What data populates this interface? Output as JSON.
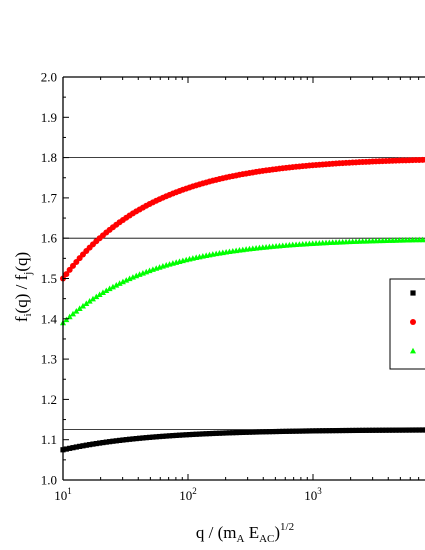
{
  "chart_data": {
    "type": "scatter",
    "xlabel": {
      "pre": "q / (m",
      "sub1": "A",
      "mid": " E",
      "sub2": "AC",
      "post": ")",
      "sup": "1/2"
    },
    "ylabel": {
      "f1": "f",
      "sub1": "i",
      "mid": "(q) / f",
      "sub2": "j",
      "post": "(q)"
    },
    "xscale": "log",
    "xlim": [
      10,
      8000
    ],
    "ylim": [
      1.0,
      2.0
    ],
    "yticks": [
      "1.0",
      "1.1",
      "1.2",
      "1.3",
      "1.4",
      "1.5",
      "1.6",
      "1.7",
      "1.8",
      "1.9",
      "2.0"
    ],
    "xticks": [
      {
        "base": "10",
        "exp": "1",
        "value": 10
      },
      {
        "base": "10",
        "exp": "2",
        "value": 100
      },
      {
        "base": "10",
        "exp": "3",
        "value": 1000
      }
    ],
    "reference_lines": [
      1.125,
      1.6,
      1.8
    ],
    "series": [
      {
        "marker": "square",
        "color": "#000000",
        "start": 1.075,
        "asymptote": 1.125,
        "k": 1.2
      },
      {
        "marker": "circle",
        "color": "#ff0000",
        "start": 1.5,
        "asymptote": 1.8,
        "k": 1.2
      },
      {
        "marker": "triangle",
        "color": "#00ff00",
        "start": 1.39,
        "asymptote": 1.6,
        "k": 1.2
      }
    ],
    "legend_placement": "right"
  }
}
